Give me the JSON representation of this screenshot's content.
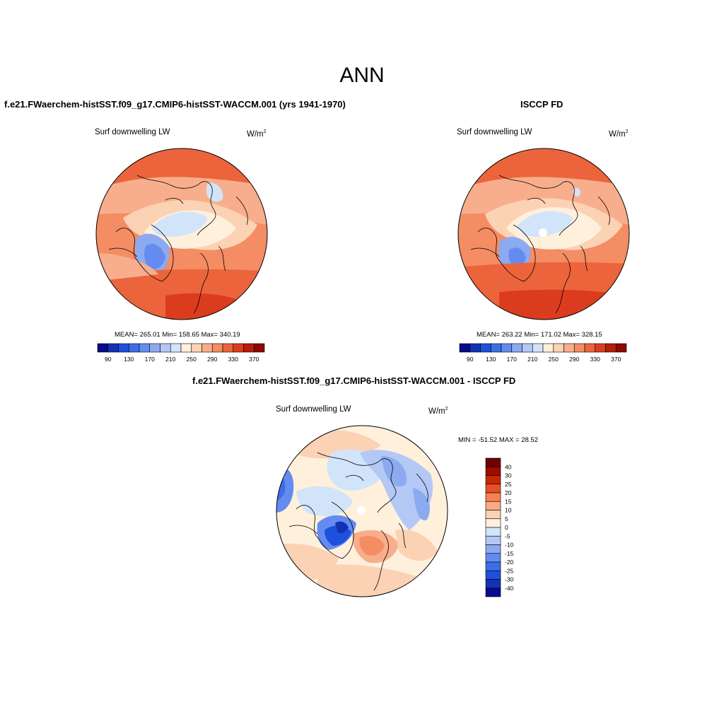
{
  "figure_title": "ANN",
  "panels": [
    {
      "title": "f.e21.FWaerchem-histSST.f09_g17.CMIP6-histSST-WACCM.001 (yrs 1941-1970)",
      "variable": "Surf downwelling LW",
      "units": "W/m",
      "units_sup": "2",
      "stats": "MEAN= 265.01  Min= 158.65  Max= 340.19",
      "colorbar_labels": [
        "90",
        "130",
        "170",
        "210",
        "250",
        "290",
        "330",
        "370"
      ]
    },
    {
      "title": "ISCCP FD",
      "variable": "Surf downwelling LW",
      "units": "W/m",
      "units_sup": "2",
      "stats": "MEAN= 263.22  Min= 171.02  Max= 328.15",
      "colorbar_labels": [
        "90",
        "130",
        "170",
        "210",
        "250",
        "290",
        "330",
        "370"
      ]
    },
    {
      "title": "f.e21.FWaerchem-histSST.f09_g17.CMIP6-histSST-WACCM.001 - ISCCP FD",
      "variable": "Surf downwelling LW",
      "units": "W/m",
      "units_sup": "2",
      "stats": "MIN = -51.52 MAX =  28.52",
      "colorbar_labels": [
        "40",
        "30",
        "25",
        "20",
        "15",
        "10",
        "5",
        "0",
        "-5",
        "-10",
        "-15",
        "-20",
        "-25",
        "-30",
        "-40"
      ]
    }
  ],
  "colors": {
    "abs_scale": [
      "#0a0a8c",
      "#1232b4",
      "#1e50dc",
      "#3c6ee6",
      "#648cf0",
      "#8caaf0",
      "#b4c8f5",
      "#d2e4fa",
      "#fff0dc",
      "#fcd2b4",
      "#f8ae8c",
      "#f48c64",
      "#ec643c",
      "#dc3c1e",
      "#b41e0a",
      "#8c0a00"
    ],
    "diff_scale": [
      "#6e0000",
      "#a00a00",
      "#c82800",
      "#e65028",
      "#f4824e",
      "#f8aa82",
      "#fcd2b4",
      "#fff0dc",
      "#d2e4fa",
      "#b4c8f5",
      "#8caaf0",
      "#648cf0",
      "#3c6ee6",
      "#1e50dc",
      "#1232b4",
      "#0a0a8c"
    ]
  }
}
